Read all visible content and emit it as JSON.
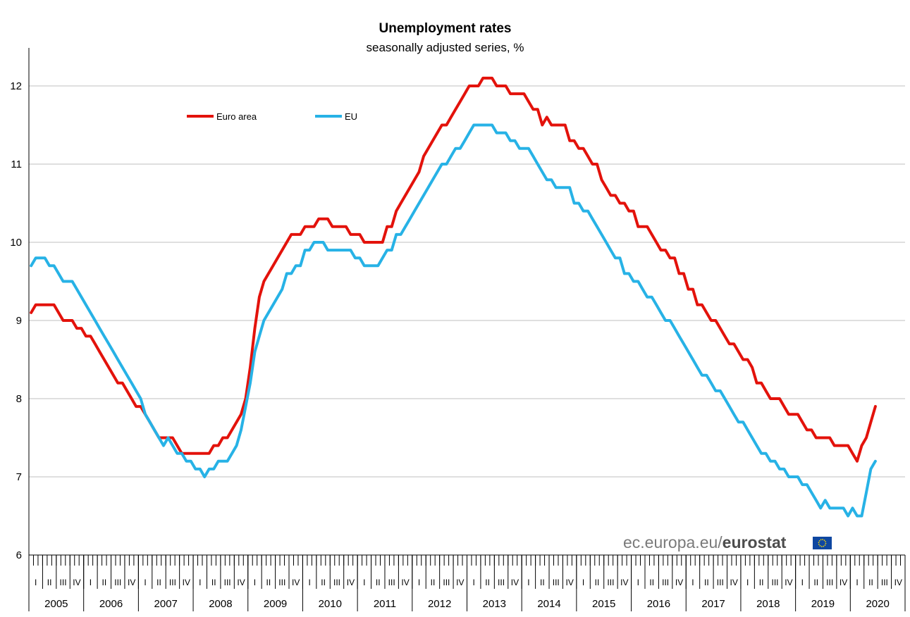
{
  "chart_data": {
    "type": "line",
    "title": "Unemployment rates",
    "subtitle": "seasonally adjusted series, %",
    "ylim": [
      6,
      12.5
    ],
    "yticks": [
      6,
      7,
      8,
      9,
      10,
      11,
      12
    ],
    "x_start": "2005-01",
    "x_end": "2020-06",
    "x_frequency": "monthly",
    "grid": true,
    "legend_position": "top-left",
    "quarter_labels": [
      "I",
      "II",
      "III",
      "IV"
    ],
    "years": [
      "2005",
      "2006",
      "2007",
      "2008",
      "2009",
      "2010",
      "2011",
      "2012",
      "2013",
      "2014",
      "2015",
      "2016",
      "2017",
      "2018",
      "2019",
      "2020"
    ],
    "series": [
      {
        "name": "Euro area",
        "color": "#e3120b",
        "values": [
          9.1,
          9.2,
          9.2,
          9.2,
          9.2,
          9.2,
          9.1,
          9.0,
          9.0,
          9.0,
          8.9,
          8.9,
          8.8,
          8.8,
          8.7,
          8.6,
          8.5,
          8.4,
          8.3,
          8.2,
          8.2,
          8.1,
          8.0,
          7.9,
          7.9,
          7.8,
          7.7,
          7.6,
          7.5,
          7.5,
          7.5,
          7.5,
          7.4,
          7.3,
          7.3,
          7.3,
          7.3,
          7.3,
          7.3,
          7.3,
          7.4,
          7.4,
          7.5,
          7.5,
          7.6,
          7.7,
          7.8,
          8.0,
          8.4,
          8.9,
          9.3,
          9.5,
          9.6,
          9.7,
          9.8,
          9.9,
          10.0,
          10.1,
          10.1,
          10.1,
          10.2,
          10.2,
          10.2,
          10.3,
          10.3,
          10.3,
          10.2,
          10.2,
          10.2,
          10.2,
          10.1,
          10.1,
          10.1,
          10.0,
          10.0,
          10.0,
          10.0,
          10.0,
          10.2,
          10.2,
          10.4,
          10.5,
          10.6,
          10.7,
          10.8,
          10.9,
          11.1,
          11.2,
          11.3,
          11.4,
          11.5,
          11.5,
          11.6,
          11.7,
          11.8,
          11.9,
          12.0,
          12.0,
          12.0,
          12.1,
          12.1,
          12.1,
          12.0,
          12.0,
          12.0,
          11.9,
          11.9,
          11.9,
          11.9,
          11.8,
          11.7,
          11.7,
          11.5,
          11.6,
          11.5,
          11.5,
          11.5,
          11.5,
          11.3,
          11.3,
          11.2,
          11.2,
          11.1,
          11.0,
          11.0,
          10.8,
          10.7,
          10.6,
          10.6,
          10.5,
          10.5,
          10.4,
          10.4,
          10.2,
          10.2,
          10.2,
          10.1,
          10.0,
          9.9,
          9.9,
          9.8,
          9.8,
          9.6,
          9.6,
          9.4,
          9.4,
          9.2,
          9.2,
          9.1,
          9.0,
          9.0,
          8.9,
          8.8,
          8.7,
          8.7,
          8.6,
          8.5,
          8.5,
          8.4,
          8.2,
          8.2,
          8.1,
          8.0,
          8.0,
          8.0,
          7.9,
          7.8,
          7.8,
          7.8,
          7.7,
          7.6,
          7.6,
          7.5,
          7.5,
          7.5,
          7.5,
          7.4,
          7.4,
          7.4,
          7.4,
          7.3,
          7.2,
          7.4,
          7.5,
          7.7,
          7.9
        ]
      },
      {
        "name": "EU",
        "color": "#27b2e6",
        "values": [
          9.7,
          9.8,
          9.8,
          9.8,
          9.7,
          9.7,
          9.6,
          9.5,
          9.5,
          9.5,
          9.4,
          9.3,
          9.2,
          9.1,
          9.0,
          8.9,
          8.8,
          8.7,
          8.6,
          8.5,
          8.4,
          8.3,
          8.2,
          8.1,
          8.0,
          7.8,
          7.7,
          7.6,
          7.5,
          7.4,
          7.5,
          7.4,
          7.3,
          7.3,
          7.2,
          7.2,
          7.1,
          7.1,
          7.0,
          7.1,
          7.1,
          7.2,
          7.2,
          7.2,
          7.3,
          7.4,
          7.6,
          7.9,
          8.2,
          8.6,
          8.8,
          9.0,
          9.1,
          9.2,
          9.3,
          9.4,
          9.6,
          9.6,
          9.7,
          9.7,
          9.9,
          9.9,
          10.0,
          10.0,
          10.0,
          9.9,
          9.9,
          9.9,
          9.9,
          9.9,
          9.9,
          9.8,
          9.8,
          9.7,
          9.7,
          9.7,
          9.7,
          9.8,
          9.9,
          9.9,
          10.1,
          10.1,
          10.2,
          10.3,
          10.4,
          10.5,
          10.6,
          10.7,
          10.8,
          10.9,
          11.0,
          11.0,
          11.1,
          11.2,
          11.2,
          11.3,
          11.4,
          11.5,
          11.5,
          11.5,
          11.5,
          11.5,
          11.4,
          11.4,
          11.4,
          11.3,
          11.3,
          11.2,
          11.2,
          11.2,
          11.1,
          11.0,
          10.9,
          10.8,
          10.8,
          10.7,
          10.7,
          10.7,
          10.7,
          10.5,
          10.5,
          10.4,
          10.4,
          10.3,
          10.2,
          10.1,
          10.0,
          9.9,
          9.8,
          9.8,
          9.6,
          9.6,
          9.5,
          9.5,
          9.4,
          9.3,
          9.3,
          9.2,
          9.1,
          9.0,
          9.0,
          8.9,
          8.8,
          8.7,
          8.6,
          8.5,
          8.4,
          8.3,
          8.3,
          8.2,
          8.1,
          8.1,
          8.0,
          7.9,
          7.8,
          7.7,
          7.7,
          7.6,
          7.5,
          7.4,
          7.3,
          7.3,
          7.2,
          7.2,
          7.1,
          7.1,
          7.0,
          7.0,
          7.0,
          6.9,
          6.9,
          6.8,
          6.7,
          6.6,
          6.7,
          6.6,
          6.6,
          6.6,
          6.6,
          6.5,
          6.6,
          6.5,
          6.5,
          6.8,
          7.1,
          7.2
        ]
      }
    ]
  },
  "credit": {
    "prefix": "ec.europa.eu/",
    "brand": "eurostat"
  },
  "colors": {
    "gridline": "#bfbfbf",
    "axis": "#000000",
    "flag": "#0e47a1",
    "flag_stars": "#ffdd00"
  }
}
